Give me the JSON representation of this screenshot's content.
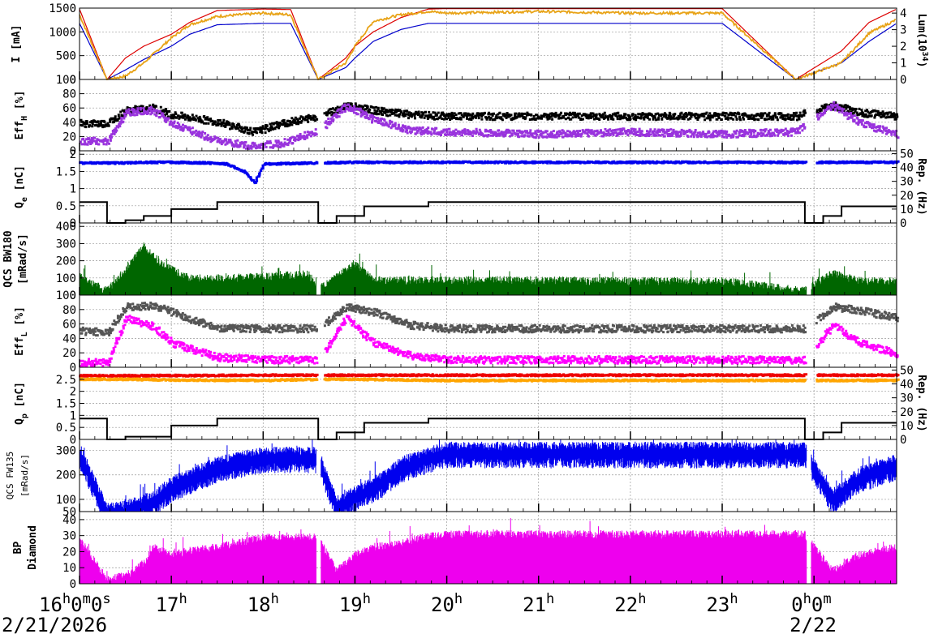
{
  "chart_data": [
    {
      "type": "line",
      "ylabel": "I [mA]",
      "ylabel_right_parts": [
        "Lum(10",
        "34",
        ")"
      ],
      "ylim": [
        0,
        1500
      ],
      "yticks": [
        "0",
        "500",
        "1000",
        "1500"
      ],
      "y2lim": [
        0,
        4.3
      ],
      "y2ticks": [
        "0",
        "1",
        "2",
        "3",
        "4"
      ],
      "colors": {
        "ler": "#dd0000",
        "her": "#0000cc",
        "lum": "#e8a317"
      },
      "x_hours": [
        16.0,
        16.3,
        16.5,
        16.7,
        17.0,
        17.2,
        17.5,
        18.0,
        18.3,
        18.6,
        18.9,
        19.0,
        19.2,
        19.5,
        19.8,
        20.0,
        21.0,
        22.0,
        23.0,
        23.8,
        24.3,
        24.6,
        24.9
      ],
      "series": [
        {
          "key": "ler",
          "values": [
            1480,
            0,
            450,
            700,
            950,
            1200,
            1450,
            1480,
            1470,
            0,
            450,
            700,
            1000,
            1300,
            1480,
            1490,
            1490,
            1490,
            1490,
            0,
            600,
            1200,
            1480
          ]
        },
        {
          "key": "her",
          "values": [
            1180,
            0,
            200,
            420,
            700,
            950,
            1150,
            1180,
            1180,
            0,
            250,
            450,
            800,
            1050,
            1180,
            1180,
            1180,
            1180,
            1180,
            0,
            350,
            800,
            1180
          ]
        },
        {
          "key": "lum",
          "values": [
            3.9,
            0,
            0.2,
            1.0,
            2.5,
            3.3,
            3.8,
            4.0,
            3.9,
            0,
            1.0,
            2.0,
            3.5,
            3.9,
            4.1,
            4.0,
            4.1,
            4.0,
            4.0,
            0,
            1.0,
            2.8,
            3.6
          ]
        }
      ]
    },
    {
      "type": "scatter",
      "ylabel": "Eff",
      "ylabel_sub": "H",
      "ylabel_unit": "[%]",
      "ylim": [
        0,
        100
      ],
      "yticks": [
        "0",
        "20",
        "40",
        "60",
        "80",
        "100"
      ],
      "colors": {
        "upper": "#000000",
        "lower": "#9933dd"
      },
      "x_hours": [
        16.0,
        16.3,
        16.5,
        16.8,
        17.0,
        17.5,
        17.9,
        18.2,
        18.6,
        18.9,
        19.2,
        19.6,
        20.0,
        21.0,
        22.0,
        23.0,
        23.8,
        24.2,
        24.5,
        24.9
      ],
      "series": [
        {
          "key": "upper",
          "values": [
            40,
            40,
            58,
            62,
            52,
            42,
            28,
            40,
            50,
            65,
            58,
            52,
            50,
            50,
            50,
            50,
            50,
            65,
            55,
            50
          ]
        },
        {
          "key": "lower",
          "values": [
            15,
            15,
            55,
            58,
            40,
            15,
            8,
            12,
            30,
            65,
            45,
            30,
            28,
            25,
            28,
            25,
            28,
            65,
            40,
            25
          ]
        }
      ]
    },
    {
      "type": "scatter",
      "ylabel": "Q",
      "ylabel_sub": "e",
      "ylabel_unit": "[nC]",
      "ylabel_right": "Rep. (Hz)",
      "ylim": [
        0,
        2.1
      ],
      "yticks": [
        "0",
        "0.5",
        "1",
        "1.5",
        "2"
      ],
      "y2lim": [
        0,
        52
      ],
      "y2ticks": [
        "0",
        "10",
        "20",
        "30",
        "40",
        "50"
      ],
      "colors": {
        "charge": "#0000ee",
        "rep": "#000000"
      },
      "x_hours": [
        16.0,
        16.4,
        16.8,
        17.0,
        17.4,
        17.6,
        17.8,
        17.9,
        18.0,
        18.6,
        19.0,
        19.5,
        20.0,
        21.0,
        22.0,
        23.0,
        23.9,
        24.2,
        24.5,
        24.9
      ],
      "series": [
        {
          "key": "charge",
          "values": [
            1.78,
            1.78,
            1.8,
            1.8,
            1.78,
            1.75,
            1.5,
            1.2,
            1.75,
            1.78,
            1.8,
            1.8,
            1.8,
            1.8,
            1.8,
            1.8,
            1.8,
            1.8,
            1.8,
            1.8
          ]
        },
        {
          "key": "rep",
          "x_hours": [
            16.0,
            16.3,
            16.3,
            16.5,
            16.5,
            16.7,
            16.7,
            17.0,
            17.0,
            17.5,
            17.5,
            18.6,
            18.6,
            18.8,
            18.8,
            19.1,
            19.1,
            19.8,
            19.8,
            23.9,
            23.9,
            24.1,
            24.1,
            24.3,
            24.3,
            24.9
          ],
          "values": [
            15,
            15,
            0,
            0,
            2,
            2,
            5,
            5,
            10,
            10,
            15,
            15,
            0,
            0,
            5,
            5,
            12,
            12,
            15,
            15,
            0,
            0,
            5,
            5,
            12,
            12
          ]
        }
      ]
    },
    {
      "type": "bar",
      "ylabel": "QCS BW180",
      "ylabel_unit": "[mRad/s]",
      "ylim": [
        0,
        420
      ],
      "yticks": [
        "0",
        "100",
        "200",
        "300",
        "400"
      ],
      "colors": {
        "dose": "#006600"
      },
      "x_hours": [
        16.0,
        16.3,
        16.5,
        16.7,
        16.9,
        17.2,
        17.5,
        18.0,
        18.5,
        18.6,
        19.0,
        19.2,
        19.5,
        20.0,
        21.0,
        22.0,
        23.0,
        23.9,
        24.2,
        24.5,
        24.9
      ],
      "values": [
        80,
        0,
        120,
        260,
        150,
        70,
        70,
        80,
        95,
        0,
        160,
        60,
        60,
        60,
        60,
        55,
        55,
        0,
        100,
        55,
        55
      ]
    },
    {
      "type": "scatter",
      "ylabel": "Eff",
      "ylabel_sub": "L",
      "ylabel_unit": "[%]",
      "ylim": [
        0,
        100
      ],
      "yticks": [
        "0",
        "20",
        "40",
        "60",
        "80",
        "100"
      ],
      "colors": {
        "upper": "#555555",
        "lower": "#ff00ff"
      },
      "x_hours": [
        16.0,
        16.3,
        16.5,
        16.8,
        17.0,
        17.5,
        18.0,
        18.6,
        18.9,
        19.2,
        19.6,
        20.0,
        21.0,
        22.0,
        23.0,
        23.9,
        24.2,
        24.5,
        24.9
      ],
      "series": [
        {
          "key": "upper",
          "values": [
            52,
            50,
            85,
            87,
            78,
            55,
            55,
            55,
            85,
            78,
            60,
            55,
            55,
            55,
            55,
            55,
            85,
            80,
            70
          ]
        },
        {
          "key": "lower",
          "values": [
            8,
            8,
            70,
            58,
            35,
            15,
            12,
            12,
            70,
            35,
            18,
            12,
            12,
            12,
            12,
            12,
            60,
            35,
            20
          ]
        }
      ]
    },
    {
      "type": "scatter",
      "ylabel": "Q",
      "ylabel_sub": "p",
      "ylabel_unit": "[nC]",
      "ylabel_right": "Rep. (Hz)",
      "ylim": [
        0,
        3.0
      ],
      "yticks": [
        "0",
        "0.5",
        "1",
        "1.5",
        "2",
        "2.5"
      ],
      "y2lim": [
        0,
        52
      ],
      "y2ticks": [
        "0",
        "10",
        "20",
        "30",
        "40",
        "50"
      ],
      "colors": {
        "charge1": "#ee0000",
        "charge2": "#ffa500",
        "rep": "#000000"
      },
      "x_hours": [
        16.0,
        16.5,
        17.0,
        18.0,
        18.6,
        19.0,
        20.0,
        21.0,
        22.0,
        23.0,
        23.9,
        24.2,
        24.9
      ],
      "series": [
        {
          "key": "charge1",
          "values": [
            2.7,
            2.7,
            2.7,
            2.72,
            2.72,
            2.72,
            2.72,
            2.72,
            2.72,
            2.72,
            2.72,
            2.72,
            2.72
          ]
        },
        {
          "key": "charge2",
          "values": [
            2.55,
            2.55,
            2.52,
            2.5,
            2.55,
            2.55,
            2.5,
            2.5,
            2.5,
            2.5,
            2.5,
            2.5,
            2.5
          ]
        },
        {
          "key": "rep",
          "x_hours": [
            16.0,
            16.3,
            16.3,
            16.5,
            16.5,
            17.0,
            17.0,
            17.5,
            17.5,
            18.6,
            18.6,
            18.8,
            18.8,
            19.1,
            19.1,
            19.8,
            19.8,
            23.9,
            23.9,
            24.1,
            24.1,
            24.3,
            24.3,
            24.9
          ],
          "values": [
            15,
            15,
            0,
            0,
            2,
            2,
            10,
            10,
            15,
            15,
            0,
            0,
            5,
            5,
            12,
            12,
            15,
            15,
            0,
            0,
            5,
            5,
            12,
            12
          ]
        }
      ]
    },
    {
      "type": "bar",
      "ylabel": "QCS FW135",
      "ylabel_unit": "[mRad/s]",
      "ylim": [
        50,
        345
      ],
      "yticks": [
        "50",
        "100",
        "200",
        "300"
      ],
      "colors": {
        "dose": "#0000ee"
      },
      "x_hours": [
        16.0,
        16.3,
        16.5,
        16.8,
        17.0,
        17.5,
        18.0,
        18.6,
        18.8,
        19.0,
        19.3,
        19.5,
        19.8,
        20.0,
        21.0,
        22.0,
        23.0,
        23.9,
        24.2,
        24.5,
        24.9
      ],
      "values": [
        300,
        50,
        60,
        100,
        160,
        240,
        280,
        280,
        80,
        120,
        180,
        240,
        280,
        300,
        300,
        300,
        300,
        300,
        110,
        200,
        250
      ]
    },
    {
      "type": "bar",
      "ylabel": "BP",
      "ylabel2": "Diamond",
      "ylim": [
        0,
        45
      ],
      "yticks": [
        "0",
        "10",
        "20",
        "30",
        "40"
      ],
      "colors": {
        "dose": "#ee00ee"
      },
      "x_hours": [
        16.0,
        16.3,
        16.5,
        16.7,
        16.8,
        17.0,
        17.2,
        17.5,
        18.0,
        18.6,
        18.8,
        19.0,
        19.2,
        19.5,
        19.8,
        20.0,
        21.0,
        22.0,
        23.0,
        23.9,
        24.2,
        24.5,
        24.9
      ],
      "values": [
        25,
        0,
        2,
        10,
        20,
        15,
        18,
        20,
        26,
        26,
        5,
        15,
        20,
        22,
        27,
        28,
        28,
        28,
        28,
        28,
        5,
        15,
        20
      ]
    }
  ],
  "x_axis": {
    "range_hours": [
      16.0,
      24.9
    ],
    "tick_labels": [
      {
        "hour": 16,
        "text": "16",
        "sup": "h",
        "text2": "0",
        "sup2": "m",
        "text3": "0",
        "sup3": "s"
      },
      {
        "hour": 17,
        "text": "17",
        "sup": "h"
      },
      {
        "hour": 18,
        "text": "18",
        "sup": "h"
      },
      {
        "hour": 19,
        "text": "19",
        "sup": "h"
      },
      {
        "hour": 20,
        "text": "20",
        "sup": "h"
      },
      {
        "hour": 21,
        "text": "21",
        "sup": "h"
      },
      {
        "hour": 22,
        "text": "22",
        "sup": "h"
      },
      {
        "hour": 23,
        "text": "23",
        "sup": "h"
      },
      {
        "hour": 24,
        "text": "0",
        "sup": "h",
        "text2": "0",
        "sup2": "m"
      }
    ],
    "date_labels": [
      {
        "hour": 16,
        "text": "2/21/2026"
      },
      {
        "hour": 24,
        "text": "2/22"
      }
    ]
  }
}
